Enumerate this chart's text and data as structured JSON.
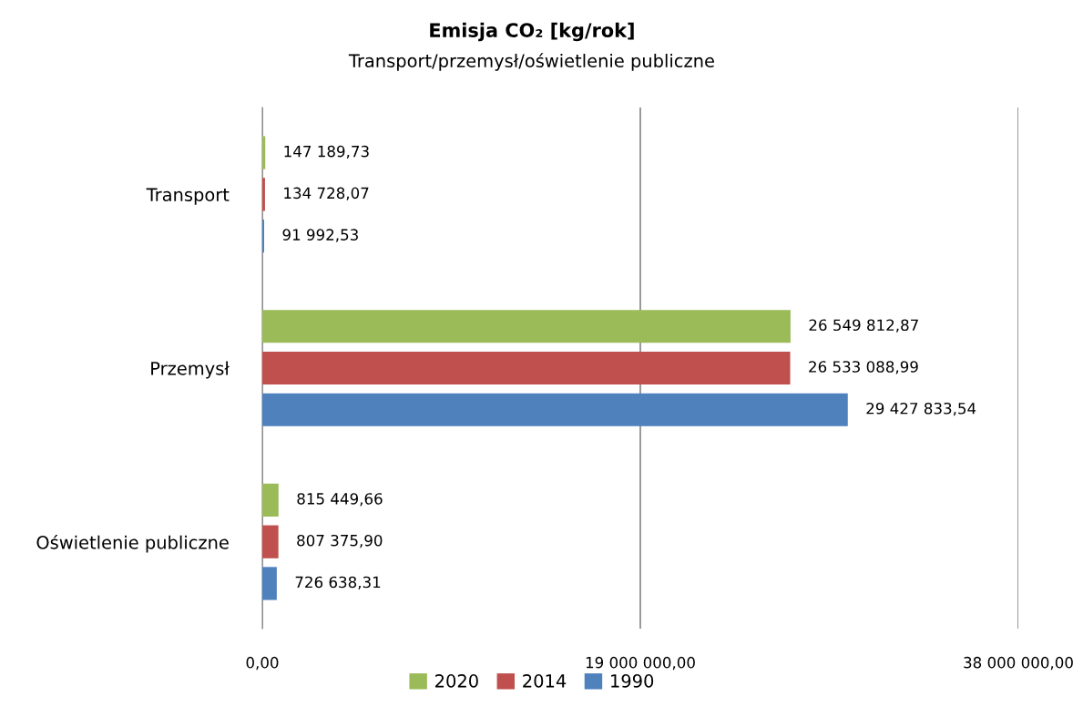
{
  "chart_data": {
    "type": "bar",
    "orientation": "horizontal",
    "title": "Emisja CO₂ [kg/rok]",
    "subtitle": "Transport/przemysł/oświetlenie publiczne",
    "categories": [
      "Transport",
      "Przemysł",
      "Oświetlenie publiczne"
    ],
    "series": [
      {
        "name": "2020",
        "color": "#9bbb59",
        "values": [
          147189.73,
          26549812.87,
          815449.66
        ],
        "value_labels": [
          "147 189,73",
          "26 549 812,87",
          "815 449,66"
        ]
      },
      {
        "name": "2014",
        "color": "#c0504d",
        "values": [
          134728.07,
          26533088.99,
          807375.9
        ],
        "value_labels": [
          "134 728,07",
          "26 533 088,99",
          "807 375,90"
        ]
      },
      {
        "name": "1990",
        "color": "#4f81bd",
        "values": [
          91992.53,
          29427833.54,
          726638.31
        ],
        "value_labels": [
          "91 992,53",
          "29 427 833,54",
          "726 638,31"
        ]
      }
    ],
    "xlim": [
      0,
      38000000
    ],
    "xticks": [
      {
        "value": 0,
        "label": "0,00"
      },
      {
        "value": 19000000,
        "label": "19 000 000,00"
      },
      {
        "value": 38000000,
        "label": "38 000 000,00"
      }
    ],
    "grid": "x",
    "legend": "bottom"
  }
}
